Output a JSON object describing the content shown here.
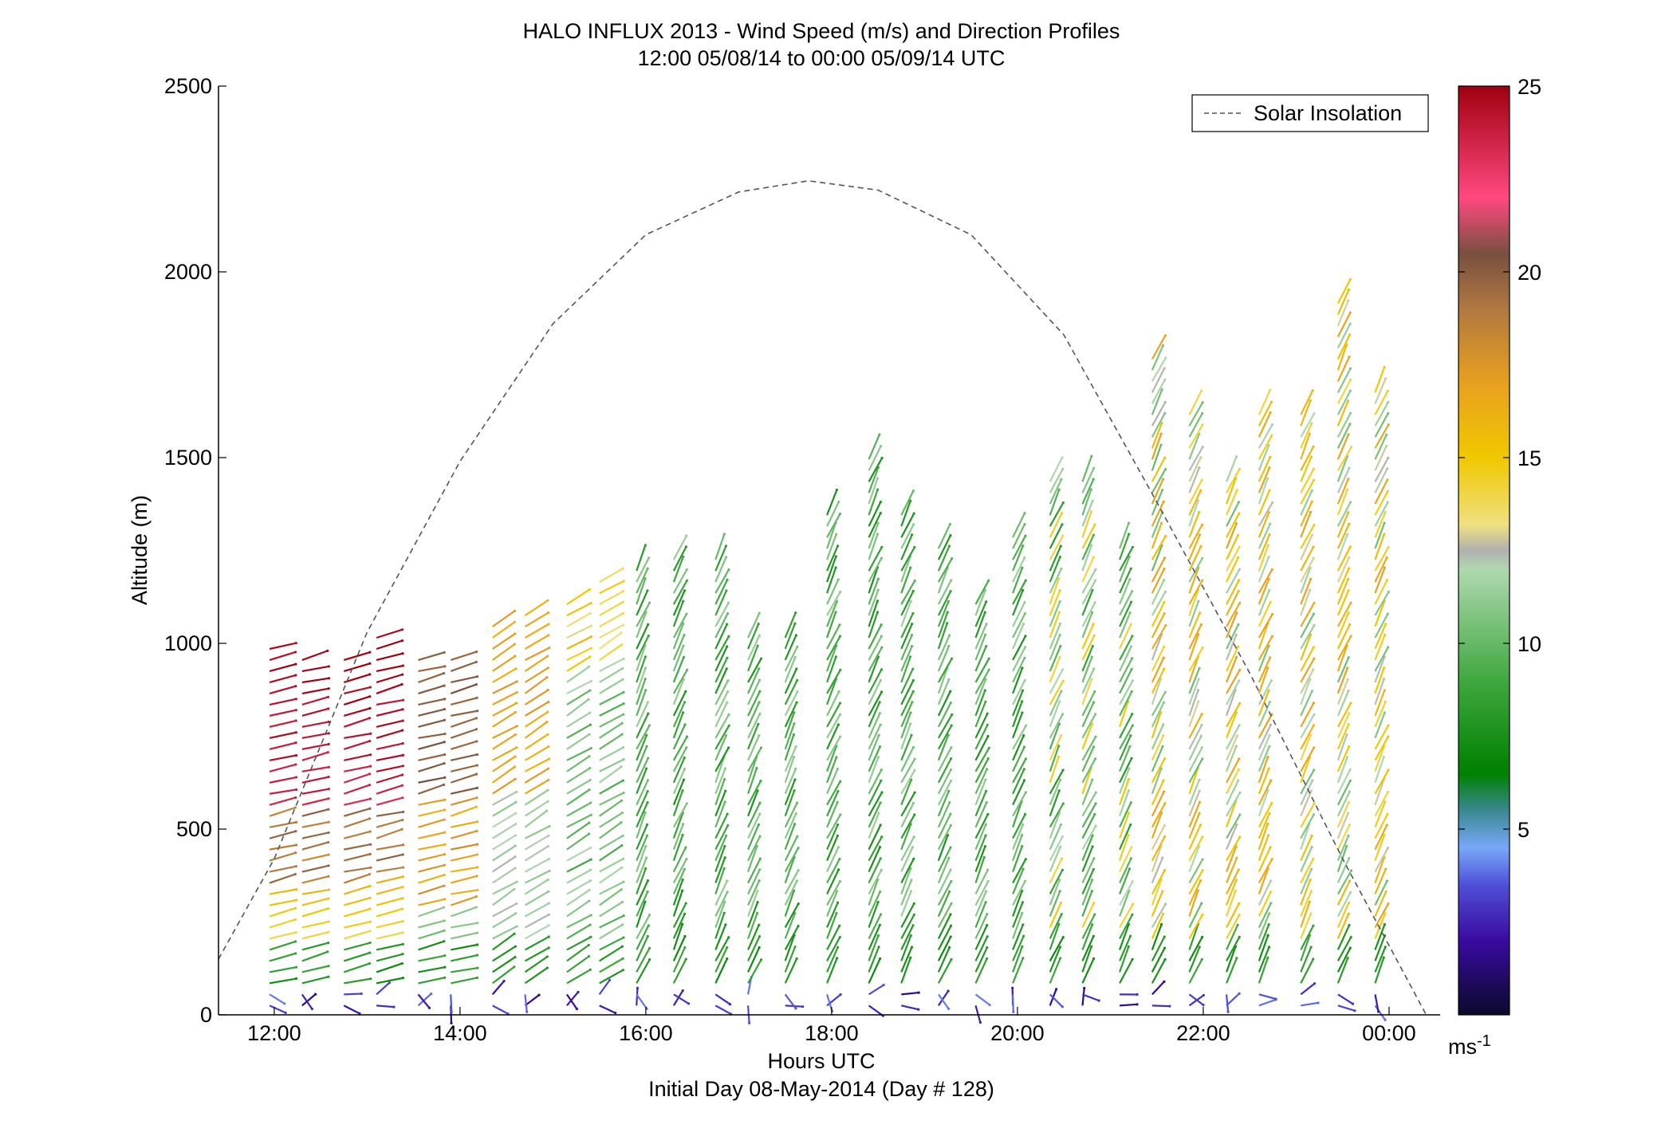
{
  "chart_data": {
    "type": "wind-profile-barbs",
    "title_line1": "HALO INFLUX 2013 - Wind Speed (m/s) and Direction Profiles",
    "title_line2": "12:00 05/08/14 to 00:00 05/09/14  UTC",
    "xlabel": "Hours UTC",
    "xlabel_sub": "Initial Day 08-May-2014 (Day # 128)",
    "ylabel": "Altitude (m)",
    "x_unit": "hours UTC",
    "xlim": [
      11.4,
      24.55
    ],
    "ylim": [
      0,
      2500
    ],
    "x_ticks": [
      {
        "value": 12,
        "label": "12:00"
      },
      {
        "value": 14,
        "label": "14:00"
      },
      {
        "value": 16,
        "label": "16:00"
      },
      {
        "value": 18,
        "label": "18:00"
      },
      {
        "value": 20,
        "label": "20:00"
      },
      {
        "value": 22,
        "label": "22:00"
      },
      {
        "value": 24,
        "label": "00:00"
      }
    ],
    "y_ticks": [
      {
        "value": 0,
        "label": "0"
      },
      {
        "value": 500,
        "label": "500"
      },
      {
        "value": 1000,
        "label": "1000"
      },
      {
        "value": 1500,
        "label": "1500"
      },
      {
        "value": 2000,
        "label": "2000"
      },
      {
        "value": 2500,
        "label": "2500"
      }
    ],
    "grid": false,
    "legend": {
      "position": "top-right",
      "entries": [
        {
          "label": "Solar Insolation",
          "style": "dashed",
          "color": "#555555"
        }
      ]
    },
    "colorbar": {
      "range": [
        0,
        25
      ],
      "ticks": [
        {
          "value": 5,
          "label": "5"
        },
        {
          "value": 10,
          "label": "10"
        },
        {
          "value": 15,
          "label": "15"
        },
        {
          "value": 20,
          "label": "20"
        },
        {
          "value": 25,
          "label": "25"
        }
      ],
      "unit_label": "ms",
      "unit_exponent": "-1",
      "stops": [
        {
          "value": 0,
          "color": "#0a0a2a"
        },
        {
          "value": 2,
          "color": "#3a0aa0"
        },
        {
          "value": 3.5,
          "color": "#5050d8"
        },
        {
          "value": 4.5,
          "color": "#78a8f8"
        },
        {
          "value": 5.5,
          "color": "#3a8890"
        },
        {
          "value": 6.5,
          "color": "#008000"
        },
        {
          "value": 9,
          "color": "#40a840"
        },
        {
          "value": 12,
          "color": "#b0d8b0"
        },
        {
          "value": 12.5,
          "color": "#b0b0b0"
        },
        {
          "value": 13.2,
          "color": "#f0e080"
        },
        {
          "value": 15,
          "color": "#f0c800"
        },
        {
          "value": 17,
          "color": "#e8a020"
        },
        {
          "value": 19,
          "color": "#b07840"
        },
        {
          "value": 20.5,
          "color": "#785040"
        },
        {
          "value": 22,
          "color": "#ff4880"
        },
        {
          "value": 25,
          "color": "#a00010"
        }
      ]
    },
    "solar_insolation": {
      "description_color": "#555555",
      "points": [
        {
          "x": 11.4,
          "y": 150
        },
        {
          "x": 12.0,
          "y": 420
        },
        {
          "x": 13.0,
          "y": 1030
        },
        {
          "x": 14.0,
          "y": 1490
        },
        {
          "x": 15.0,
          "y": 1860
        },
        {
          "x": 16.0,
          "y": 2100
        },
        {
          "x": 17.0,
          "y": 2215
        },
        {
          "x": 17.75,
          "y": 2245
        },
        {
          "x": 18.5,
          "y": 2220
        },
        {
          "x": 19.5,
          "y": 2100
        },
        {
          "x": 20.5,
          "y": 1830
        },
        {
          "x": 21.5,
          "y": 1380
        },
        {
          "x": 22.5,
          "y": 920
        },
        {
          "x": 23.5,
          "y": 420
        },
        {
          "x": 24.4,
          "y": 0
        }
      ]
    },
    "profiles": [
      {
        "x": 11.95,
        "top": 1010,
        "regime": "upper_red"
      },
      {
        "x": 12.3,
        "top": 975,
        "regime": "upper_red"
      },
      {
        "x": 12.75,
        "top": 975,
        "regime": "upper_red"
      },
      {
        "x": 13.1,
        "top": 1015,
        "regime": "upper_red"
      },
      {
        "x": 13.55,
        "top": 975,
        "regime": "upper_brown"
      },
      {
        "x": 13.9,
        "top": 975,
        "regime": "upper_brown"
      },
      {
        "x": 14.35,
        "top": 1055,
        "regime": "orange"
      },
      {
        "x": 14.7,
        "top": 1075,
        "regime": "orange"
      },
      {
        "x": 15.15,
        "top": 1130,
        "regime": "mixed_green"
      },
      {
        "x": 15.5,
        "top": 1185,
        "regime": "mixed_green"
      },
      {
        "x": 15.9,
        "top": 1205,
        "regime": "green"
      },
      {
        "x": 16.3,
        "top": 1235,
        "regime": "green"
      },
      {
        "x": 16.75,
        "top": 1250,
        "regime": "green"
      },
      {
        "x": 17.1,
        "top": 1020,
        "regime": "green"
      },
      {
        "x": 17.5,
        "top": 1030,
        "regime": "green"
      },
      {
        "x": 17.95,
        "top": 1370,
        "regime": "green"
      },
      {
        "x": 18.4,
        "top": 1500,
        "regime": "green"
      },
      {
        "x": 18.75,
        "top": 1370,
        "regime": "green"
      },
      {
        "x": 19.15,
        "top": 1280,
        "regime": "green"
      },
      {
        "x": 19.55,
        "top": 1110,
        "regime": "green"
      },
      {
        "x": 19.95,
        "top": 1300,
        "regime": "green"
      },
      {
        "x": 20.35,
        "top": 1455,
        "regime": "green_yellow"
      },
      {
        "x": 20.7,
        "top": 1460,
        "regime": "green_yellow"
      },
      {
        "x": 21.1,
        "top": 1280,
        "regime": "green_yellow"
      },
      {
        "x": 21.45,
        "top": 1780,
        "regime": "yellow_mix"
      },
      {
        "x": 21.85,
        "top": 1615,
        "regime": "yellow_mix"
      },
      {
        "x": 22.25,
        "top": 1455,
        "regime": "yellow_mix"
      },
      {
        "x": 22.6,
        "top": 1620,
        "regime": "yellow_mix"
      },
      {
        "x": 23.05,
        "top": 1615,
        "regime": "yellow_mix"
      },
      {
        "x": 23.45,
        "top": 1920,
        "regime": "yellow_mix"
      },
      {
        "x": 23.85,
        "top": 1700,
        "regime": "yellow_mix"
      }
    ]
  }
}
